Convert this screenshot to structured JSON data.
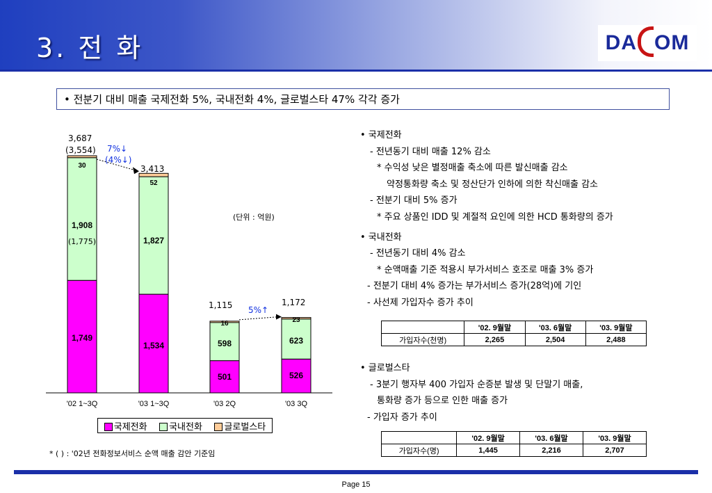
{
  "header": {
    "title": "3. 전 화",
    "logo_text": "DACOM",
    "logo_left": "DA",
    "logo_right": "OM"
  },
  "summary": "• 전분기 대비 매출 국제전화 5%, 국내전화 4%, 글로벌스타 47% 각각 증가",
  "chart_data": {
    "type": "bar",
    "stacked": true,
    "categories": [
      "'02 1~3Q",
      "'03 1~3Q",
      "'03 2Q",
      "'03 3Q"
    ],
    "series": [
      {
        "name": "국제전화",
        "color": "#ff00ff",
        "values": [
          1749,
          1534,
          501,
          526
        ]
      },
      {
        "name": "국내전화",
        "color": "#ccffcc",
        "values": [
          1908,
          1827,
          598,
          623
        ]
      },
      {
        "name": "글로벌스타",
        "color": "#ffcc99",
        "values": [
          30,
          52,
          16,
          23
        ]
      }
    ],
    "totals": [
      "3,687",
      "3,413",
      "1,115",
      "1,172"
    ],
    "data_labels": {
      "intl": [
        "1,749",
        "1,534",
        "501",
        "526"
      ],
      "dom": [
        "1,908",
        "1,827",
        "598",
        "623"
      ],
      "glob": [
        "30",
        "52",
        "16",
        "23"
      ]
    },
    "ylim": [
      0,
      4000
    ],
    "unit_note": "(단위 : 억원)",
    "annotations": {
      "total_prev": "(3,554)",
      "dom_prev": "(1,775)",
      "yoy_change": "7%↓",
      "yoy_change_prev": "(4%↓)",
      "qoq_change": "5%↑"
    }
  },
  "legend": {
    "items": [
      {
        "label": "국제전화",
        "color": "#ff00ff"
      },
      {
        "label": "국내전화",
        "color": "#ccffcc"
      },
      {
        "label": "글로벌스타",
        "color": "#ffcc99"
      }
    ]
  },
  "footnote": "* ( ) : '02년 전화정보서비스 순액 매출 감안 기준임",
  "right": {
    "intl_title": "• 국제전화",
    "intl_1": "- 전년동기 대비 매출 12% 감소",
    "intl_2": "* 수익성 낮은 별정매출 축소에 따른 발신매출 감소",
    "intl_3": "약정통화량 축소 및 정산단가 인하에 의한 착신매출 감소",
    "intl_4": "- 전분기 대비 5% 증가",
    "intl_5": "* 주요 상품인 IDD 및 계절적 요인에 의한 HCD 통화량의 증가",
    "dom_title": "• 국내전화",
    "dom_1": "- 전년동기 대비 4% 감소",
    "dom_2": "* 순액매출 기준 적용시 부가서비스 호조로 매출 3% 증가",
    "dom_3": "- 전분기 대비 4% 증가는 부가서비스 증가(28억)에 기인",
    "dom_4": "- 사선제 가입자수 증가 추이",
    "glob_title": "• 글로벌스타",
    "glob_1": "- 3분기 행자부 400 가입자 순증분 발생 및 단말기 매출,",
    "glob_2": "통화량 증가 등으로 인한 매출 증가",
    "glob_3": "- 가입자 증가 추이"
  },
  "table1": {
    "headers": [
      "",
      "'02. 9월말",
      "'03. 6월말",
      "'03. 9월말"
    ],
    "row_label": "가입자수(천명)",
    "values": [
      "2,265",
      "2,504",
      "2,488"
    ]
  },
  "table2": {
    "headers": [
      "",
      "'02. 9월말",
      "'03. 6월말",
      "'03. 9월말"
    ],
    "row_label": "가입자수(명)",
    "values": [
      "1,445",
      "2,216",
      "2,707"
    ]
  },
  "footer": {
    "page": "Page 15"
  }
}
